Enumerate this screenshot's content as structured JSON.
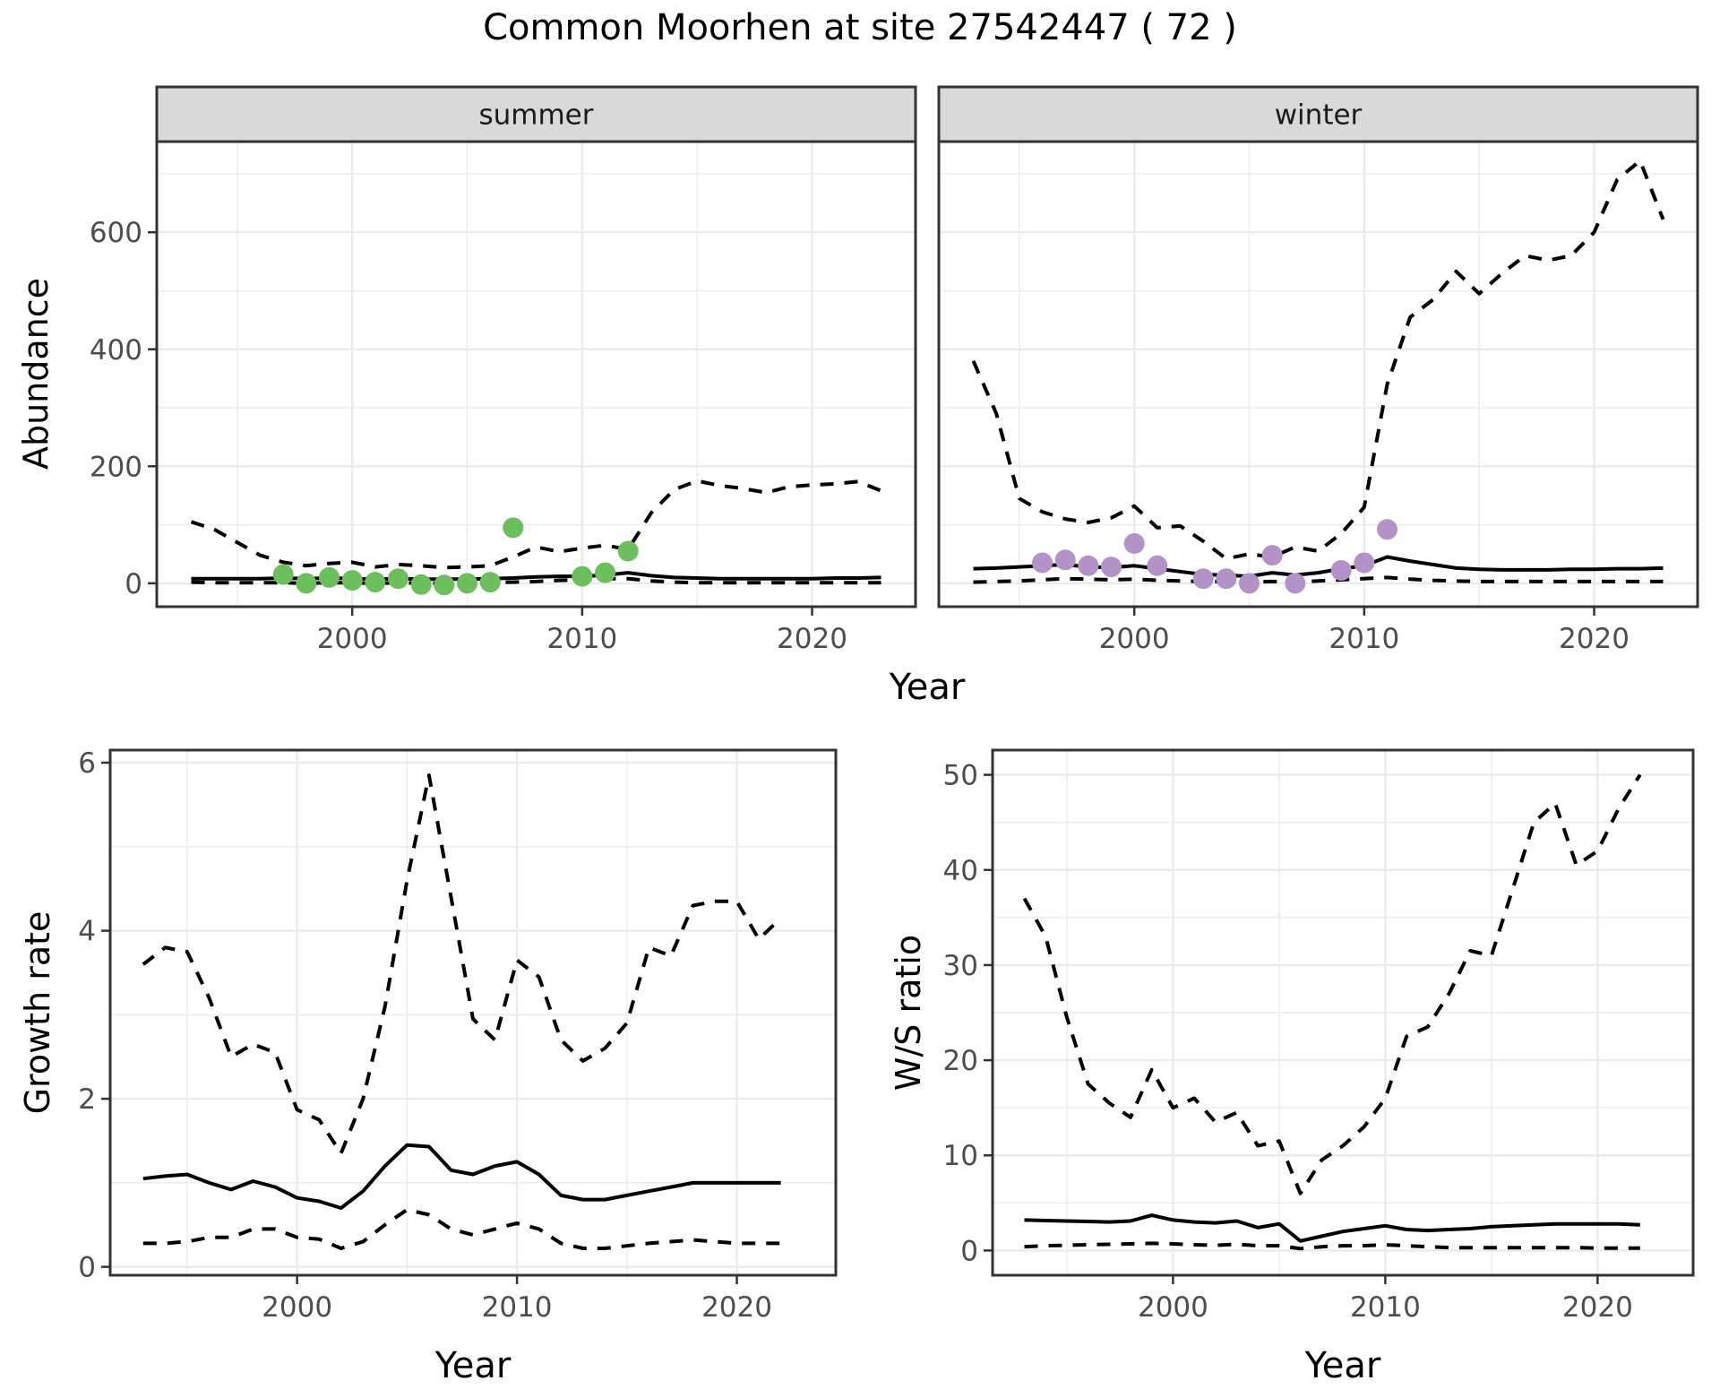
{
  "title": "Common Moorhen at site 27542447 ( 72 )",
  "labels": {
    "y_top": "Abundance",
    "y_bottom_left": "Growth rate",
    "y_bottom_right": "W/S ratio",
    "x_title": "Year"
  },
  "facets": [
    "summer",
    "winter"
  ],
  "colors": {
    "summer_points": "#6DBE5C",
    "winter_points": "#B292C7",
    "line": "#000000",
    "grid": "#EBEBEB",
    "panel_border": "#333333",
    "tick_label": "#4D4D4D",
    "strip_fill": "#D9D9D9",
    "background": "#FFFFFF"
  },
  "chart_data": [
    {
      "id": "abundance_summer",
      "type": "line",
      "facet_label": "summer",
      "title": "Abundance - summer facet",
      "xlabel": "Year",
      "ylabel": "Abundance",
      "x_domain": [
        1991.5,
        2024.5
      ],
      "y_domain": [
        -40,
        755
      ],
      "x_ticks_major": [
        2000,
        2010,
        2020
      ],
      "x_ticks_minor": [
        1995,
        2005,
        2015
      ],
      "y_ticks_major": [
        0,
        200,
        400,
        600
      ],
      "y_ticks_minor": [
        100,
        300,
        500,
        700
      ],
      "years": [
        1993,
        1994,
        1995,
        1996,
        1997,
        1998,
        1999,
        2000,
        2001,
        2002,
        2003,
        2004,
        2005,
        2006,
        2007,
        2008,
        2009,
        2010,
        2011,
        2012,
        2013,
        2014,
        2015,
        2016,
        2017,
        2018,
        2019,
        2020,
        2021,
        2022,
        2023
      ],
      "series": [
        {
          "name": "upper_ci",
          "style": "dashed",
          "values": [
            105,
            92,
            70,
            48,
            36,
            30,
            34,
            36,
            28,
            32,
            30,
            27,
            28,
            30,
            45,
            62,
            54,
            60,
            65,
            58,
            120,
            160,
            175,
            167,
            162,
            155,
            165,
            168,
            170,
            174,
            158
          ]
        },
        {
          "name": "mean",
          "style": "solid",
          "values": [
            8,
            8,
            8,
            8,
            9,
            8,
            9,
            8,
            7,
            8,
            7,
            7,
            7,
            8,
            9,
            11,
            12,
            12,
            14,
            18,
            13,
            10,
            9,
            8,
            8,
            8,
            8,
            8,
            9,
            9,
            10
          ]
        },
        {
          "name": "lower_ci",
          "style": "dashed",
          "values": [
            2,
            1,
            1,
            1,
            1,
            0,
            1,
            1,
            0,
            1,
            0,
            0,
            0,
            1,
            2,
            3,
            5,
            6,
            8,
            8,
            4,
            2,
            1,
            1,
            1,
            1,
            1,
            1,
            1,
            1,
            1
          ]
        }
      ],
      "points": {
        "name": "observed-summer-counts",
        "color_key": "summer_points",
        "years": [
          1997,
          1998,
          1999,
          2000,
          2001,
          2002,
          2003,
          2004,
          2005,
          2006,
          2007,
          2010,
          2011,
          2012
        ],
        "values": [
          15,
          0,
          10,
          5,
          2,
          8,
          -2,
          -3,
          0,
          2,
          95,
          12,
          18,
          55
        ]
      }
    },
    {
      "id": "abundance_winter",
      "type": "line",
      "facet_label": "winter",
      "title": "Abundance - winter facet",
      "xlabel": "Year",
      "ylabel": "Abundance",
      "x_domain": [
        1991.5,
        2024.5
      ],
      "y_domain": [
        -40,
        755
      ],
      "x_ticks_major": [
        2000,
        2010,
        2020
      ],
      "x_ticks_minor": [
        1995,
        2005,
        2015
      ],
      "y_ticks_major": [
        0,
        200,
        400,
        600
      ],
      "y_ticks_minor": [
        100,
        300,
        500,
        700
      ],
      "years": [
        1993,
        1994,
        1995,
        1996,
        1997,
        1998,
        1999,
        2000,
        2001,
        2002,
        2003,
        2004,
        2005,
        2006,
        2007,
        2008,
        2009,
        2010,
        2011,
        2012,
        2013,
        2014,
        2015,
        2016,
        2017,
        2018,
        2019,
        2020,
        2021,
        2022,
        2023
      ],
      "series": [
        {
          "name": "upper_ci",
          "style": "dashed",
          "values": [
            380,
            290,
            145,
            122,
            110,
            104,
            112,
            132,
            95,
            98,
            72,
            42,
            50,
            45,
            62,
            55,
            85,
            130,
            340,
            455,
            485,
            533,
            495,
            530,
            560,
            552,
            560,
            600,
            690,
            722,
            622
          ]
        },
        {
          "name": "mean",
          "style": "solid",
          "values": [
            25,
            26,
            28,
            30,
            32,
            28,
            27,
            30,
            25,
            20,
            15,
            14,
            12,
            18,
            14,
            18,
            25,
            30,
            45,
            38,
            32,
            26,
            24,
            23,
            23,
            23,
            24,
            24,
            25,
            25,
            26
          ]
        },
        {
          "name": "lower_ci",
          "style": "dashed",
          "values": [
            2,
            3,
            4,
            6,
            8,
            7,
            6,
            7,
            5,
            4,
            3,
            3,
            2,
            3,
            2,
            4,
            6,
            8,
            10,
            7,
            5,
            4,
            3,
            3,
            3,
            3,
            3,
            3,
            3,
            3,
            3
          ]
        }
      ],
      "points": {
        "name": "observed-winter-counts",
        "color_key": "winter_points",
        "years": [
          1996,
          1997,
          1998,
          1999,
          2000,
          2001,
          2003,
          2004,
          2005,
          2006,
          2007,
          2009,
          2010,
          2011
        ],
        "values": [
          35,
          40,
          30,
          28,
          68,
          30,
          8,
          8,
          0,
          48,
          0,
          22,
          35,
          92
        ]
      }
    },
    {
      "id": "growth_rate",
      "type": "line",
      "title": "Growth rate",
      "xlabel": "Year",
      "ylabel": "Growth rate",
      "x_domain": [
        1991.5,
        2024.5
      ],
      "y_domain": [
        -0.1,
        6.15
      ],
      "x_ticks_major": [
        2000,
        2010,
        2020
      ],
      "x_ticks_minor": [
        1995,
        2005,
        2015
      ],
      "y_ticks_major": [
        0,
        2,
        4,
        6
      ],
      "y_ticks_minor": [
        1,
        3,
        5
      ],
      "years": [
        1993,
        1994,
        1995,
        1996,
        1997,
        1998,
        1999,
        2000,
        2001,
        2002,
        2003,
        2004,
        2005,
        2006,
        2007,
        2008,
        2009,
        2010,
        2011,
        2012,
        2013,
        2014,
        2015,
        2016,
        2017,
        2018,
        2019,
        2020,
        2021,
        2022
      ],
      "series": [
        {
          "name": "upper_ci",
          "style": "dashed",
          "values": [
            3.6,
            3.8,
            3.75,
            3.2,
            2.5,
            2.65,
            2.55,
            1.87,
            1.75,
            1.35,
            2.0,
            3.1,
            4.6,
            5.85,
            4.4,
            2.95,
            2.7,
            3.65,
            3.45,
            2.7,
            2.45,
            2.6,
            2.9,
            3.8,
            3.7,
            4.3,
            4.35,
            4.35,
            3.9,
            4.15
          ]
        },
        {
          "name": "mean",
          "style": "solid",
          "values": [
            1.05,
            1.08,
            1.1,
            1.0,
            0.92,
            1.02,
            0.95,
            0.82,
            0.78,
            0.7,
            0.9,
            1.2,
            1.45,
            1.43,
            1.15,
            1.1,
            1.2,
            1.25,
            1.1,
            0.85,
            0.8,
            0.8,
            0.85,
            0.9,
            0.95,
            1.0,
            1.0,
            1.0,
            1.0,
            1.0
          ]
        },
        {
          "name": "lower_ci",
          "style": "dashed",
          "values": [
            0.28,
            0.28,
            0.3,
            0.35,
            0.35,
            0.45,
            0.45,
            0.35,
            0.33,
            0.22,
            0.3,
            0.5,
            0.68,
            0.62,
            0.45,
            0.38,
            0.45,
            0.52,
            0.45,
            0.28,
            0.22,
            0.22,
            0.25,
            0.28,
            0.3,
            0.32,
            0.3,
            0.28,
            0.28,
            0.28
          ]
        }
      ]
    },
    {
      "id": "ws_ratio",
      "type": "line",
      "title": "W/S ratio",
      "xlabel": "Year",
      "ylabel": "W/S ratio",
      "x_domain": [
        1991.5,
        2024.5
      ],
      "y_domain": [
        -2.6,
        52.6
      ],
      "x_ticks_major": [
        2000,
        2010,
        2020
      ],
      "x_ticks_minor": [
        1995,
        2005,
        2015
      ],
      "y_ticks_major": [
        0,
        10,
        20,
        30,
        40,
        50
      ],
      "y_ticks_minor": [
        5,
        15,
        25,
        35,
        45
      ],
      "years": [
        1993,
        1994,
        1995,
        1996,
        1997,
        1998,
        1999,
        2000,
        2001,
        2002,
        2003,
        2004,
        2005,
        2006,
        2007,
        2008,
        2009,
        2010,
        2011,
        2012,
        2013,
        2014,
        2015,
        2016,
        2017,
        2018,
        2019,
        2020,
        2021,
        2022
      ],
      "series": [
        {
          "name": "upper_ci",
          "style": "dashed",
          "values": [
            37,
            33,
            24.5,
            17.5,
            15.5,
            14,
            19,
            15,
            16,
            13.5,
            14.5,
            11,
            11.5,
            6,
            9.5,
            11,
            13,
            16,
            22.5,
            23.5,
            27,
            31.5,
            31,
            38,
            45,
            47,
            40.5,
            42,
            46.5,
            50
          ]
        },
        {
          "name": "mean",
          "style": "solid",
          "values": [
            3.2,
            3.15,
            3.1,
            3.05,
            3.0,
            3.1,
            3.7,
            3.2,
            3.0,
            2.9,
            3.1,
            2.4,
            2.8,
            1.0,
            1.5,
            2.0,
            2.3,
            2.6,
            2.2,
            2.1,
            2.2,
            2.3,
            2.5,
            2.6,
            2.7,
            2.8,
            2.8,
            2.8,
            2.8,
            2.7
          ]
        },
        {
          "name": "lower_ci",
          "style": "dashed",
          "values": [
            0.4,
            0.5,
            0.55,
            0.6,
            0.65,
            0.7,
            0.75,
            0.7,
            0.6,
            0.55,
            0.65,
            0.5,
            0.5,
            0.2,
            0.4,
            0.5,
            0.5,
            0.6,
            0.5,
            0.4,
            0.3,
            0.3,
            0.3,
            0.3,
            0.3,
            0.3,
            0.3,
            0.25,
            0.25,
            0.25
          ]
        }
      ]
    }
  ]
}
